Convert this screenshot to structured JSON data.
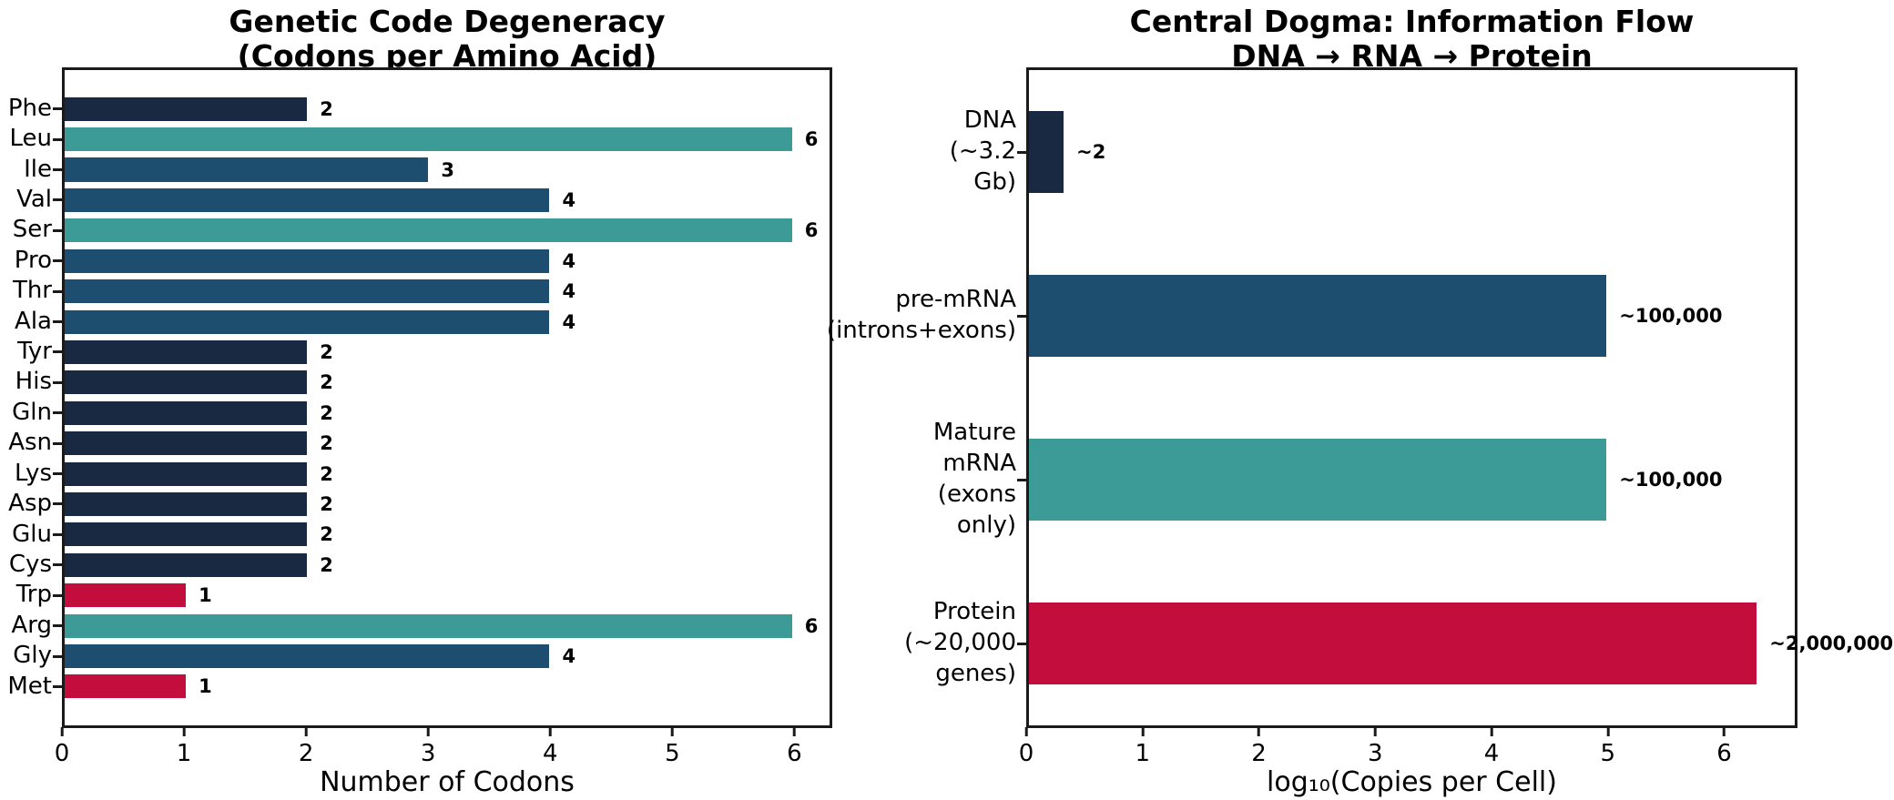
{
  "colors": {
    "navy": "#1A2942",
    "blue": "#1E4E6F",
    "teal": "#3D9B97",
    "crimson": "#C30D3C",
    "axis": "#1a1a1a",
    "background": "#ffffff",
    "text": "#000000"
  },
  "chart_data": [
    {
      "type": "bar",
      "orientation": "horizontal",
      "title_lines": [
        "Genetic Code Degeneracy",
        "(Codons per Amino Acid)"
      ],
      "xlabel": "Number of Codons",
      "xlim": [
        0,
        6.31
      ],
      "xticks": [
        0,
        1,
        2,
        3,
        4,
        5,
        6
      ],
      "grid": false,
      "legend": "none",
      "categories": [
        "Phe",
        "Leu",
        "Ile",
        "Val",
        "Ser",
        "Pro",
        "Thr",
        "Ala",
        "Tyr",
        "His",
        "Gln",
        "Asn",
        "Lys",
        "Asp",
        "Glu",
        "Cys",
        "Trp",
        "Arg",
        "Gly",
        "Met"
      ],
      "values": [
        2,
        6,
        3,
        4,
        6,
        4,
        4,
        4,
        2,
        2,
        2,
        2,
        2,
        2,
        2,
        2,
        1,
        6,
        4,
        1
      ],
      "bar_labels": [
        "2",
        "6",
        "3",
        "4",
        "6",
        "4",
        "4",
        "4",
        "2",
        "2",
        "2",
        "2",
        "2",
        "2",
        "2",
        "2",
        "1",
        "6",
        "4",
        "1"
      ],
      "bar_colors": [
        "navy",
        "teal",
        "blue",
        "blue",
        "teal",
        "blue",
        "blue",
        "blue",
        "navy",
        "navy",
        "navy",
        "navy",
        "navy",
        "navy",
        "navy",
        "navy",
        "crimson",
        "teal",
        "blue",
        "crimson"
      ]
    },
    {
      "type": "bar",
      "orientation": "horizontal",
      "title_lines": [
        "Central Dogma: Information Flow",
        "DNA → RNA → Protein"
      ],
      "xlabel": "log₁₀(Copies per Cell)",
      "xlim": [
        0,
        6.63
      ],
      "xticks": [
        0,
        1,
        2,
        3,
        4,
        5,
        6
      ],
      "grid": false,
      "legend": "none",
      "categories": [
        "DNA\n(~3.2 Gb)",
        "pre-mRNA\n(introns+exons)",
        "Mature mRNA\n(exons only)",
        "Protein\n(~20,000 genes)"
      ],
      "values": [
        0.301,
        5.0,
        5.0,
        6.301
      ],
      "bar_labels": [
        "~2",
        "~100,000",
        "~100,000",
        "~2,000,000"
      ],
      "bar_colors": [
        "navy",
        "blue",
        "teal",
        "crimson"
      ]
    }
  ]
}
